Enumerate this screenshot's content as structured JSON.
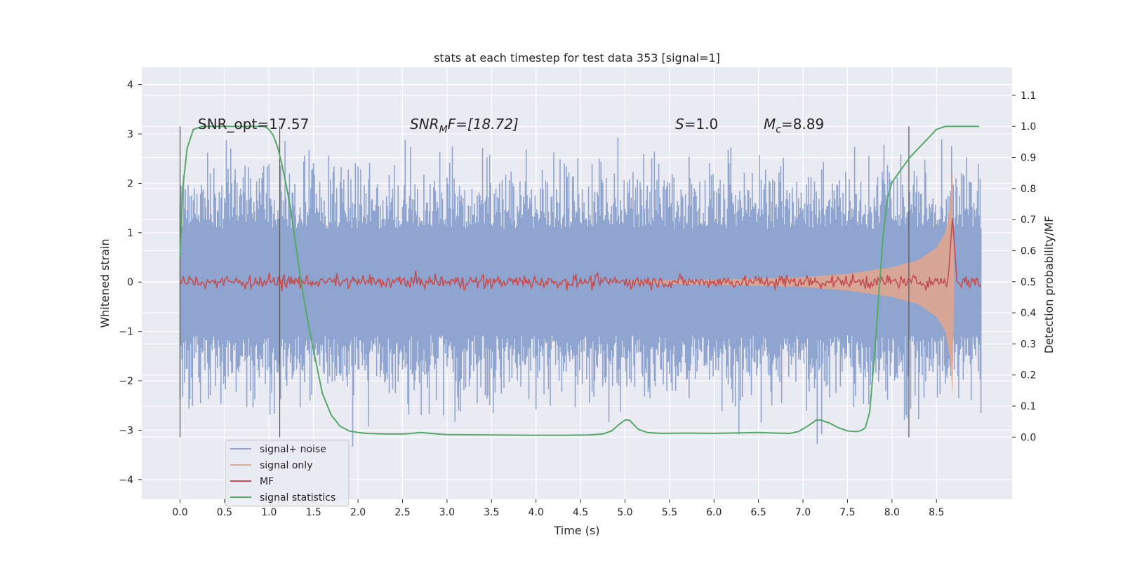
{
  "chart_data": {
    "type": "line",
    "title": "stats at each timestep for test data 353 [signal=1]",
    "xlabel": "Time (s)",
    "ylabel_left": "Whitened strain",
    "ylabel_right": "Detection probability/MF",
    "xlim": [
      -0.43,
      9.35
    ],
    "ylim_left": [
      -4.4,
      4.35
    ],
    "ylim_right": [
      -0.2,
      1.19
    ],
    "x_ticks": [
      0.0,
      0.5,
      1.0,
      1.5,
      2.0,
      2.5,
      3.0,
      3.5,
      4.0,
      4.5,
      5.0,
      5.5,
      6.0,
      6.5,
      7.0,
      7.5,
      8.0,
      8.5
    ],
    "x_tick_labels": [
      "0.0",
      "0.5",
      "1.0",
      "1.5",
      "2.0",
      "2.5",
      "3.0",
      "3.5",
      "4.0",
      "4.5",
      "5.0",
      "5.5",
      "6.0",
      "6.5",
      "7.0",
      "7.5",
      "8.0",
      "8.5"
    ],
    "y_left_ticks": [
      -4,
      -3,
      -2,
      -1,
      0,
      1,
      2,
      3,
      4
    ],
    "y_left_tick_labels": [
      "−4",
      "−3",
      "−2",
      "−1",
      "0",
      "1",
      "2",
      "3",
      "4"
    ],
    "y_right_ticks": [
      0.0,
      0.1,
      0.2,
      0.3,
      0.4,
      0.5,
      0.6,
      0.7,
      0.8,
      0.9,
      1.0,
      1.1
    ],
    "y_right_tick_labels": [
      "0.0",
      "0.1",
      "0.2",
      "0.3",
      "0.4",
      "0.5",
      "0.6",
      "0.7",
      "0.8",
      "0.9",
      "1.0",
      "1.1"
    ],
    "grid": true,
    "legend_position": "lower-left",
    "annotations": {
      "snr_opt": "SNR_opt=17.57",
      "snr_mf_main": "SNR",
      "snr_mf_sub": "M",
      "snr_mf_rest": "F=[18.72]",
      "s_main": "S",
      "s_rest": "=1.0",
      "mc_main": "M",
      "mc_sub": "c",
      "mc_rest": "=8.89"
    },
    "vertical_markers": [
      0.0,
      1.12,
      8.19
    ],
    "series": [
      {
        "name": "signal+ noise",
        "color": "#8fa5cf",
        "axis": "left",
        "description_level": {
          "x_start": 0.0,
          "x_end": 9.0,
          "amplitude_typical": 1.8,
          "amplitude_max": 3.95
        }
      },
      {
        "name": "signal only",
        "color": "#e4a68c",
        "axis": "left",
        "envelope": {
          "x": [
            5.0,
            6.0,
            7.0,
            7.5,
            8.0,
            8.3,
            8.5,
            8.6,
            8.65,
            8.68,
            8.7
          ],
          "amp": [
            0.02,
            0.05,
            0.1,
            0.17,
            0.3,
            0.45,
            0.7,
            1.0,
            1.5,
            2.3,
            0.0
          ]
        }
      },
      {
        "name": "MF",
        "color": "#c44e52",
        "axis": "right",
        "level": 0.5,
        "noise": 0.015,
        "peak_x": 8.68,
        "peak_y": 0.71
      },
      {
        "name": "signal statistics",
        "color": "#55a868",
        "axis": "right",
        "x": [
          0.0,
          0.03,
          0.08,
          0.15,
          0.25,
          0.5,
          0.8,
          0.95,
          1.0,
          1.05,
          1.1,
          1.15,
          1.2,
          1.25,
          1.3,
          1.35,
          1.4,
          1.45,
          1.5,
          1.55,
          1.6,
          1.7,
          1.8,
          1.9,
          2.0,
          2.1,
          2.3,
          2.5,
          2.6,
          2.7,
          2.9,
          3.0,
          3.5,
          4.0,
          4.3,
          4.6,
          4.75,
          4.85,
          4.93,
          5.0,
          5.05,
          5.1,
          5.15,
          5.25,
          5.4,
          5.7,
          6.0,
          6.3,
          6.5,
          6.7,
          6.85,
          6.95,
          7.05,
          7.15,
          7.2,
          7.3,
          7.4,
          7.5,
          7.6,
          7.65,
          7.7,
          7.75,
          7.8,
          7.85,
          7.9,
          7.95,
          8.0,
          8.1,
          8.2,
          8.3,
          8.4,
          8.5,
          8.6,
          8.7,
          8.8,
          8.9,
          8.98
        ],
        "y": [
          0.58,
          0.8,
          0.93,
          0.99,
          1.0,
          1.0,
          1.0,
          1.0,
          0.99,
          0.97,
          0.93,
          0.87,
          0.8,
          0.72,
          0.62,
          0.52,
          0.43,
          0.35,
          0.28,
          0.21,
          0.14,
          0.07,
          0.035,
          0.02,
          0.015,
          0.012,
          0.01,
          0.01,
          0.012,
          0.015,
          0.01,
          0.008,
          0.007,
          0.006,
          0.006,
          0.007,
          0.01,
          0.02,
          0.04,
          0.055,
          0.055,
          0.04,
          0.025,
          0.015,
          0.012,
          0.013,
          0.012,
          0.014,
          0.015,
          0.013,
          0.012,
          0.018,
          0.035,
          0.055,
          0.055,
          0.045,
          0.03,
          0.02,
          0.018,
          0.021,
          0.03,
          0.08,
          0.25,
          0.45,
          0.65,
          0.77,
          0.82,
          0.86,
          0.9,
          0.93,
          0.96,
          0.99,
          1.0,
          1.0,
          1.0,
          1.0,
          1.0
        ]
      }
    ]
  }
}
